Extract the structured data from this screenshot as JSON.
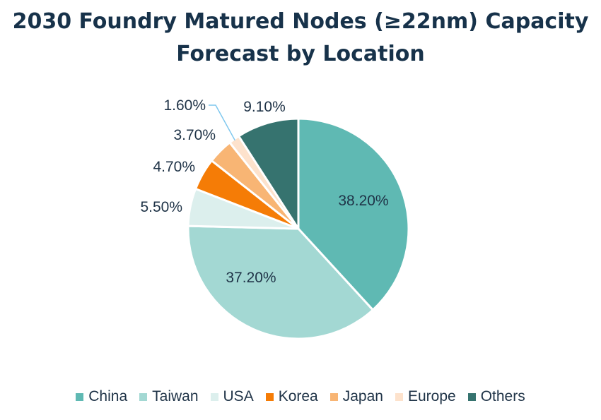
{
  "chart_data": {
    "type": "pie",
    "title_lines": [
      "2030 Foundry Matured Nodes (≥22nm) Capacity",
      "Forecast by Location"
    ],
    "categories": [
      "China",
      "Taiwan",
      "USA",
      "Korea",
      "Japan",
      "Europe",
      "Others"
    ],
    "values": [
      38.2,
      37.2,
      5.5,
      4.7,
      3.7,
      1.6,
      9.1
    ],
    "labels": [
      "38.20%",
      "37.20%",
      "5.50%",
      "4.70%",
      "3.70%",
      "1.60%",
      "9.10%"
    ],
    "colors": [
      "#5fb9b3",
      "#a3d8d3",
      "#dcefed",
      "#f57c06",
      "#f8b574",
      "#fde2cc",
      "#36736f"
    ],
    "legend_position": "bottom",
    "start_angle_deg": 0,
    "direction": "clockwise"
  }
}
